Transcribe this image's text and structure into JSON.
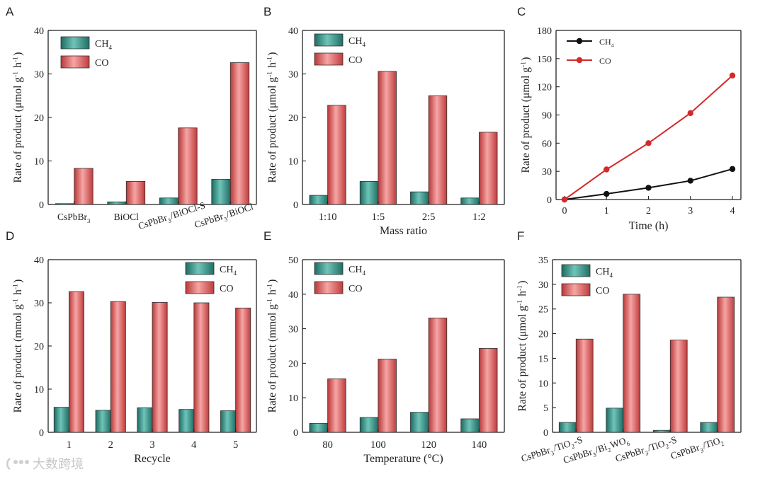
{
  "watermark": "大数跨境",
  "chart_data": [
    {
      "id": "A",
      "type": "bar",
      "categories": [
        "CsPbBr3",
        "BiOCl",
        "CsPbBr3/BiOCl-S",
        "CsPbBr3/BiOCl"
      ],
      "series": [
        {
          "name": "CH4",
          "color": "#2f8f84",
          "values": [
            0.2,
            0.6,
            1.5,
            5.8
          ]
        },
        {
          "name": "CO",
          "color": "#e05a5a",
          "values": [
            8.3,
            5.3,
            17.6,
            32.6
          ]
        }
      ],
      "title": "",
      "xlabel": "",
      "ylabel": "Rate of product (μmol g⁻¹ h⁻¹)",
      "ylim": [
        0,
        40
      ],
      "yticks": [
        0,
        10,
        20,
        30,
        40
      ],
      "legend": "top-left"
    },
    {
      "id": "B",
      "type": "bar",
      "categories": [
        "1:10",
        "1:5",
        "2:5",
        "1:2"
      ],
      "series": [
        {
          "name": "CH4",
          "color": "#2f8f84",
          "values": [
            2.1,
            5.3,
            2.9,
            1.5
          ]
        },
        {
          "name": "CO",
          "color": "#e05a5a",
          "values": [
            22.8,
            30.6,
            25.0,
            16.6
          ]
        }
      ],
      "title": "",
      "xlabel": "Mass ratio",
      "ylabel": "Rate of product (μmol g⁻¹ h⁻¹)",
      "ylim": [
        0,
        40
      ],
      "yticks": [
        0,
        10,
        20,
        30,
        40
      ],
      "legend": "top-left"
    },
    {
      "id": "C",
      "type": "line",
      "x": [
        0,
        1,
        2,
        3,
        4
      ],
      "series": [
        {
          "name": "CH4",
          "color": "#111111",
          "values": [
            0,
            6,
            12.5,
            20,
            32.5
          ]
        },
        {
          "name": "CO",
          "color": "#d42a2a",
          "values": [
            0,
            32,
            60,
            92,
            132
          ]
        }
      ],
      "title": "",
      "xlabel": "Time (h)",
      "ylabel": "Rate of product (μmol g⁻¹)",
      "xlim": [
        0,
        4
      ],
      "ylim": [
        0,
        180
      ],
      "xticks": [
        0,
        1,
        2,
        3,
        4
      ],
      "yticks": [
        0,
        30,
        60,
        90,
        120,
        150,
        180
      ],
      "legend": "top-left"
    },
    {
      "id": "D",
      "type": "bar",
      "categories": [
        "1",
        "2",
        "3",
        "4",
        "5"
      ],
      "series": [
        {
          "name": "CH4",
          "color": "#2f8f84",
          "values": [
            5.8,
            5.1,
            5.7,
            5.3,
            5.0
          ]
        },
        {
          "name": "CO",
          "color": "#e05a5a",
          "values": [
            32.6,
            30.3,
            30.1,
            30.0,
            28.8
          ]
        }
      ],
      "title": "",
      "xlabel": "Recycle",
      "ylabel": "Rate of product (mmol g⁻¹ h⁻¹)",
      "ylim": [
        0,
        40
      ],
      "yticks": [
        0,
        10,
        20,
        30,
        40
      ],
      "legend": "top-right"
    },
    {
      "id": "E",
      "type": "bar",
      "categories": [
        "80",
        "100",
        "120",
        "140"
      ],
      "series": [
        {
          "name": "CH4",
          "color": "#2f8f84",
          "values": [
            2.6,
            4.3,
            5.8,
            3.9
          ]
        },
        {
          "name": "CO",
          "color": "#e05a5a",
          "values": [
            15.5,
            21.2,
            33.1,
            24.3
          ]
        }
      ],
      "title": "",
      "xlabel": "Temperature (°C)",
      "ylabel": "Rate of product (mmol g⁻¹ h⁻¹)",
      "ylim": [
        0,
        50
      ],
      "yticks": [
        0,
        10,
        20,
        30,
        40,
        50
      ],
      "legend": "top-left"
    },
    {
      "id": "F",
      "type": "bar",
      "categories": [
        "CsPbBr3/TiO2-S",
        "CsPbBr3/Bi2WO6",
        "CsPbBr3/TiO2-S",
        "CsPbBr3/TiO2"
      ],
      "series": [
        {
          "name": "CH4",
          "color": "#2f8f84",
          "values": [
            2.0,
            4.9,
            0.4,
            2.0
          ]
        },
        {
          "name": "CO",
          "color": "#e05a5a",
          "values": [
            18.9,
            28.0,
            18.7,
            27.4
          ]
        }
      ],
      "title": "",
      "xlabel": "",
      "ylabel": "Rate of product (μmol g⁻¹ h⁻¹)",
      "ylim": [
        0,
        35
      ],
      "yticks": [
        0,
        5,
        10,
        15,
        20,
        25,
        30,
        35
      ],
      "legend": "top-left"
    }
  ]
}
